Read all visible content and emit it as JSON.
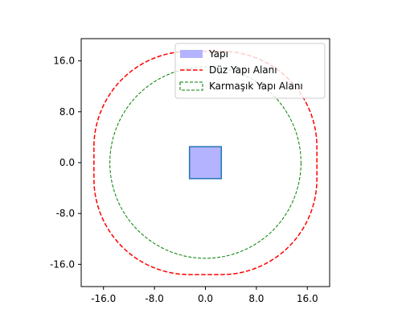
{
  "chart_data": {
    "type": "scatter",
    "title": "",
    "xlabel": "",
    "ylabel": "",
    "xlim": [
      -19.5,
      19.5
    ],
    "ylim": [
      -19.5,
      19.5
    ],
    "xticks": [
      "-16.0",
      "-8.0",
      "0.0",
      "8.0",
      "16.0"
    ],
    "yticks": [
      "-16.0",
      "-8.0",
      "0.0",
      "8.0",
      "16.0"
    ],
    "grid": false,
    "legend_position": "top-right",
    "series": [
      {
        "name": "Yapı",
        "kind": "square",
        "center": [
          0,
          0
        ],
        "half_size": 2.5,
        "fill": "#b3b3ff",
        "edge": "#1f77b4"
      },
      {
        "name": "Düz Yapı Alanı",
        "kind": "rounded-square-outline",
        "center": [
          0,
          0
        ],
        "inner_half_size": 2.5,
        "offset": 15,
        "color": "#ff0000",
        "style": "dashed"
      },
      {
        "name": "Karmaşık Yapı Alanı",
        "kind": "circle-outline",
        "center": [
          0,
          0
        ],
        "radius": 15,
        "color": "#008000",
        "style": "dashed"
      }
    ]
  },
  "colors": {
    "structure_fill": "#b3b3ff",
    "structure_edge": "#1f77b4",
    "flat_zone": "#ff0000",
    "complex_zone": "#008000"
  }
}
